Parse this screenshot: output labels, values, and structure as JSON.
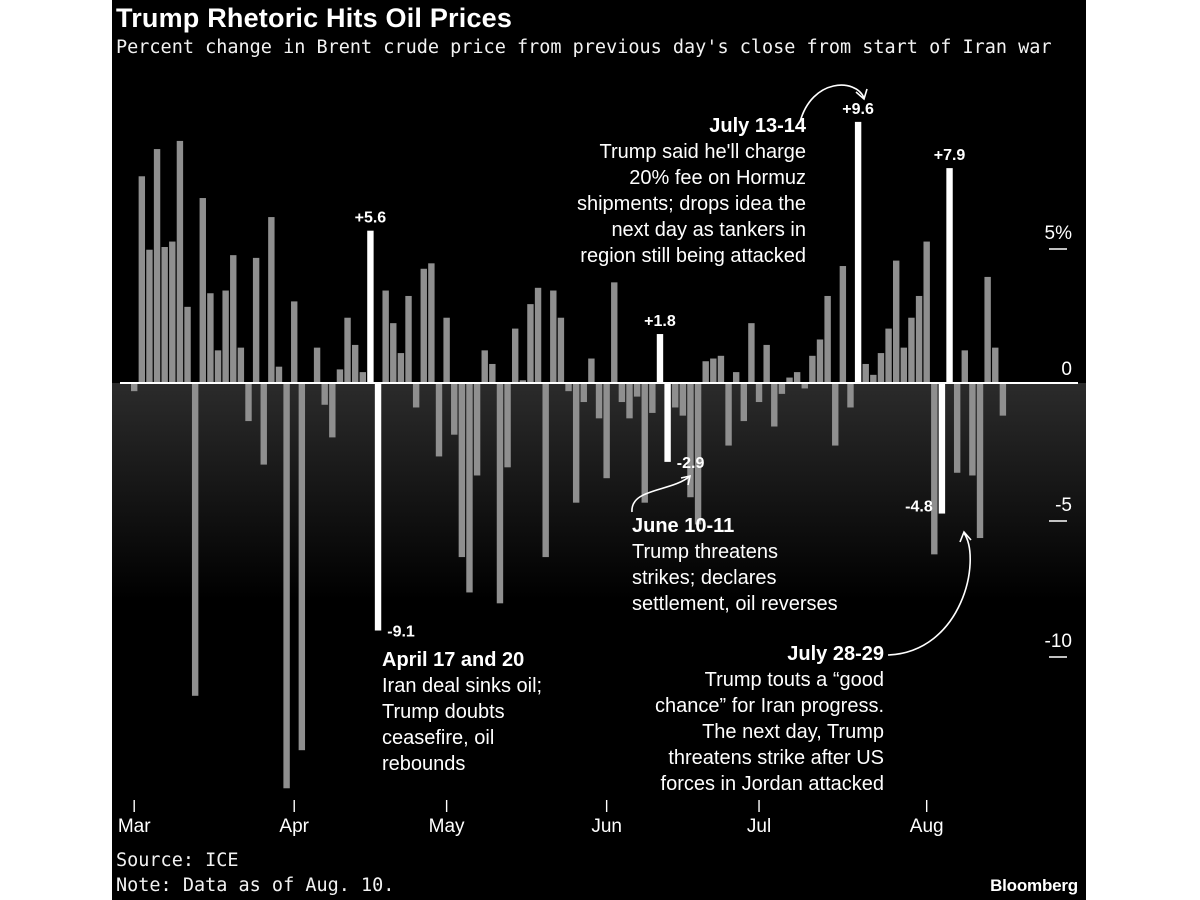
{
  "header": {
    "title": "Trump Rhetoric Hits Oil Prices",
    "subtitle": "Percent change in Brent crude price from previous day's close from start of Iran war"
  },
  "chart_data": {
    "type": "bar",
    "title": "Trump Rhetoric Hits Oil Prices",
    "subtitle": "Percent change in Brent crude price from previous day's close from start of Iran war",
    "ylabel": "",
    "xlabel": "",
    "ylim": [
      -15,
      10
    ],
    "y_ticks": [
      {
        "value": 5,
        "label": "5%"
      },
      {
        "value": 0,
        "label": "0"
      },
      {
        "value": -5,
        "label": "-5"
      },
      {
        "value": -10,
        "label": "-10"
      }
    ],
    "x_ticks": [
      {
        "bar_index": 0,
        "label": "Mar"
      },
      {
        "bar_index": 21,
        "label": "Apr"
      },
      {
        "bar_index": 41,
        "label": "May"
      },
      {
        "bar_index": 62,
        "label": "Jun"
      },
      {
        "bar_index": 82,
        "label": "Jul"
      },
      {
        "bar_index": 104,
        "label": "Aug"
      }
    ],
    "grid": false,
    "colors": {
      "regular": "#8f8f8f",
      "highlight": "#ffffff",
      "zero_line": "#ffffff"
    },
    "series": [
      {
        "values": [
          -0.3,
          7.6,
          4.9,
          8.6,
          5.0,
          5.2,
          8.9,
          2.8,
          -11.5,
          6.8,
          3.3,
          1.2,
          3.4,
          4.7,
          1.3,
          -1.4,
          4.6,
          -3.0,
          6.1,
          0.6,
          -14.9,
          3.0,
          -13.5,
          0.0,
          1.3,
          -0.8,
          -2.0,
          0.5,
          2.4,
          1.4,
          0.4,
          5.6,
          -9.1,
          3.4,
          2.2,
          1.1,
          3.2,
          -0.9,
          4.2,
          4.4,
          -2.7,
          2.4,
          -1.9,
          -6.4,
          -7.7,
          -3.4,
          1.2,
          0.7,
          -8.1,
          -3.1,
          2.0,
          0.1,
          2.9,
          3.5,
          -6.4,
          3.4,
          2.4,
          -0.3,
          -4.4,
          -0.7,
          0.9,
          -1.3,
          -3.5,
          3.7,
          -0.7,
          -1.3,
          -0.5,
          -4.4,
          -1.1,
          1.8,
          -2.9,
          -0.9,
          -1.2,
          -4.2,
          -5.2,
          0.8,
          0.9,
          1.0,
          -2.3,
          0.4,
          -1.4,
          2.2,
          -0.7,
          1.4,
          -1.6,
          -0.4,
          0.2,
          0.4,
          -0.2,
          1.0,
          1.6,
          3.2,
          -2.3,
          4.3,
          -0.9,
          9.6,
          0.7,
          0.3,
          1.1,
          2.0,
          4.5,
          1.3,
          2.4,
          3.2,
          5.2,
          -6.3,
          -4.8,
          7.9,
          -3.3,
          1.2,
          -3.4,
          -5.7,
          3.9,
          1.3,
          -1.2
        ],
        "highlighted_indices": [
          31,
          32,
          69,
          70,
          95,
          106,
          107
        ]
      }
    ],
    "data_labels": [
      {
        "bar_index": 31,
        "text": "+5.6"
      },
      {
        "bar_index": 32,
        "text": "-9.1"
      },
      {
        "bar_index": 69,
        "text": "+1.8"
      },
      {
        "bar_index": 70,
        "text": "-2.9"
      },
      {
        "bar_index": 95,
        "text": "+9.6"
      },
      {
        "bar_index": 106,
        "text": "-4.8"
      },
      {
        "bar_index": 107,
        "text": "+7.9"
      }
    ]
  },
  "annotations": {
    "april": {
      "heading": "April 17 and 20",
      "lines": [
        "Iran deal sinks oil;",
        "Trump doubts",
        "ceasefire, oil",
        "rebounds"
      ]
    },
    "june": {
      "heading": "June 10-11",
      "lines": [
        "Trump threatens",
        "strikes; declares",
        "settlement, oil reverses"
      ]
    },
    "july13": {
      "heading": "July 13-14",
      "lines": [
        "Trump said he'll charge",
        "20% fee on Hormuz",
        "shipments; drops idea the",
        "next day as tankers in",
        "region still being attacked"
      ]
    },
    "july28": {
      "heading": "July 28-29",
      "lines": [
        "Trump touts a “good",
        "chance” for Iran progress.",
        "The next day, Trump",
        "threatens strike after US",
        "forces in Jordan attacked"
      ]
    }
  },
  "footer": {
    "source": "Source: ICE",
    "note": "Note: Data as of Aug. 10.",
    "brand": "Bloomberg"
  }
}
